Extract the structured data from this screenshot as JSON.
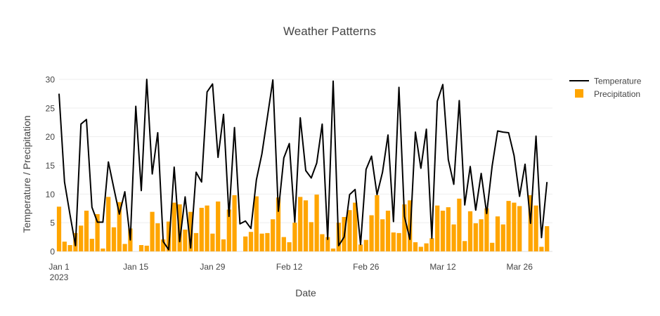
{
  "chart_data": {
    "type": "bar+line",
    "title": "Weather Patterns",
    "xlabel": "Date",
    "ylabel": "Temperature / Precipitation",
    "x_start": "2023-01-01",
    "x_end": "2023-04-01",
    "ylim": [
      0,
      30
    ],
    "y_ticks": [
      0,
      5,
      10,
      15,
      20,
      25,
      30
    ],
    "x_ticks": [
      {
        "date": "2023-01-01",
        "label": "Jan 1",
        "sublabel": "2023"
      },
      {
        "date": "2023-01-15",
        "label": "Jan 15",
        "sublabel": ""
      },
      {
        "date": "2023-01-29",
        "label": "Jan 29",
        "sublabel": ""
      },
      {
        "date": "2023-02-12",
        "label": "Feb 12",
        "sublabel": ""
      },
      {
        "date": "2023-02-26",
        "label": "Feb 26",
        "sublabel": ""
      },
      {
        "date": "2023-03-12",
        "label": "Mar 12",
        "sublabel": ""
      },
      {
        "date": "2023-03-26",
        "label": "Mar 26",
        "sublabel": ""
      }
    ],
    "grid": true,
    "legend_position": "top-right",
    "colors": {
      "temperature": "#000000",
      "precipitation": "#FFA500",
      "grid": "#eeeeee",
      "text": "#444444"
    },
    "series": [
      {
        "name": "Temperature",
        "kind": "line",
        "values": [
          27.5,
          12.1,
          6.4,
          1.0,
          22.2,
          23.0,
          7.7,
          5.1,
          5.1,
          15.6,
          11.0,
          6.5,
          10.4,
          2.0,
          25.3,
          10.6,
          30.0,
          13.5,
          20.7,
          1.7,
          0.3,
          14.7,
          1.7,
          9.5,
          0.6,
          13.8,
          12.1,
          27.8,
          29.2,
          16.4,
          23.9,
          6.1,
          21.6,
          4.8,
          5.3,
          4.0,
          12.5,
          17.0,
          23.4,
          29.9,
          7.0,
          16.3,
          18.8,
          5.1,
          23.3,
          14.1,
          12.8,
          15.4,
          22.2,
          2.1,
          29.7,
          1.0,
          2.5,
          9.9,
          10.8,
          1.2,
          14.3,
          16.6,
          9.9,
          13.8,
          20.3,
          5.2,
          28.6,
          6.1,
          2.1,
          20.8,
          14.5,
          21.3,
          2.3,
          26.2,
          29.1,
          16.0,
          11.7,
          26.3,
          8.1,
          14.8,
          7.2,
          13.6,
          6.6,
          14.9,
          21.0,
          20.8,
          20.7,
          16.7,
          9.6,
          15.2,
          4.9,
          20.1,
          2.4,
          12.1
        ]
      },
      {
        "name": "Precipitation",
        "kind": "bar",
        "values": [
          7.8,
          1.7,
          1.1,
          3.2,
          4.5,
          7.1,
          2.2,
          6.5,
          0.5,
          9.5,
          4.2,
          8.6,
          1.3,
          4.0,
          0.0,
          1.1,
          1.0,
          6.9,
          4.9,
          2.1,
          5.2,
          8.5,
          8.2,
          3.8,
          6.9,
          3.2,
          7.6,
          8.0,
          3.1,
          8.7,
          2.1,
          7.3,
          9.8,
          0.0,
          2.6,
          3.4,
          9.6,
          3.1,
          3.2,
          5.6,
          9.4,
          2.5,
          1.6,
          5.0,
          9.5,
          8.9,
          5.1,
          9.9,
          3.0,
          2.5,
          0.5,
          5.0,
          6.0,
          7.2,
          8.5,
          1.2,
          2.0,
          6.3,
          9.8,
          5.6,
          7.1,
          3.3,
          3.2,
          8.2,
          8.9,
          1.6,
          0.8,
          1.4,
          2.3,
          8.0,
          7.1,
          7.7,
          4.7,
          9.2,
          1.8,
          7.0,
          4.9,
          5.6,
          7.5,
          1.5,
          6.1,
          4.7,
          8.8,
          8.5,
          7.9,
          0.0,
          9.8,
          8.0,
          0.8,
          4.4
        ]
      }
    ]
  }
}
